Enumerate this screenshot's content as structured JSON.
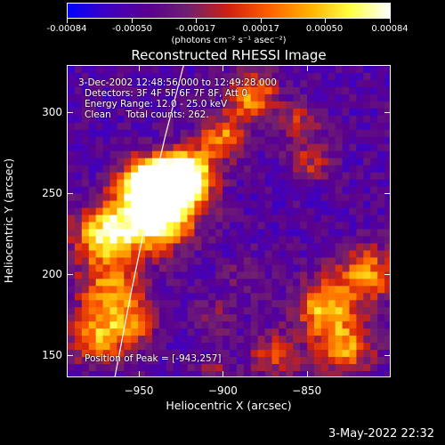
{
  "colorbar": {
    "min": -0.00084,
    "max": 0.00084,
    "tick_labels": [
      "-0.00084",
      "-0.00050",
      "-0.00017",
      "0.00017",
      "0.00050",
      "0.00084"
    ],
    "tick_values": [
      -0.00084,
      -0.0005,
      -0.00017,
      0.00017,
      0.0005,
      0.00084
    ],
    "unit": "(photons cm⁻² s⁻¹ asec⁻²)",
    "colors": [
      "#0000ff",
      "#4000c0",
      "#5a0090",
      "#702070",
      "#d02010",
      "#ff6000",
      "#ffb000",
      "#ffff40",
      "#ffffff"
    ]
  },
  "chart_data": {
    "type": "heatmap",
    "title": "Reconstructed RHESSI Image",
    "xlabel": "Heliocentric X (arcsec)",
    "ylabel": "Heliocentric Y (arcsec)",
    "xlim": [
      -993,
      -800
    ],
    "ylim": [
      136,
      329
    ],
    "xticks": [
      -950,
      -900,
      -850
    ],
    "yticks": [
      150,
      200,
      250,
      300
    ],
    "xtick_labels": [
      "−950",
      "−900",
      "−850"
    ],
    "ytick_labels": [
      "150",
      "200",
      "250",
      "300"
    ],
    "limb_curve": [
      [
        -965,
        136
      ],
      [
        -955,
        190
      ],
      [
        -945,
        240
      ],
      [
        -935,
        285
      ],
      [
        -924,
        329
      ]
    ],
    "peak": {
      "x": -943,
      "y": 257
    }
  },
  "info": {
    "line1": "3-Dec-2002 12:48:56.000 to 12:49:28.000",
    "line2": "Detectors: 3F 4F 5F 6F 7F 8F, Att 0",
    "line3": "Energy Range: 12.0 - 25.0 keV",
    "line4": "Clean     Total counts: 262.",
    "peak_text": "Position of Peak = [-943,257]"
  },
  "footer": {
    "date": "3-May-2022 22:32"
  }
}
